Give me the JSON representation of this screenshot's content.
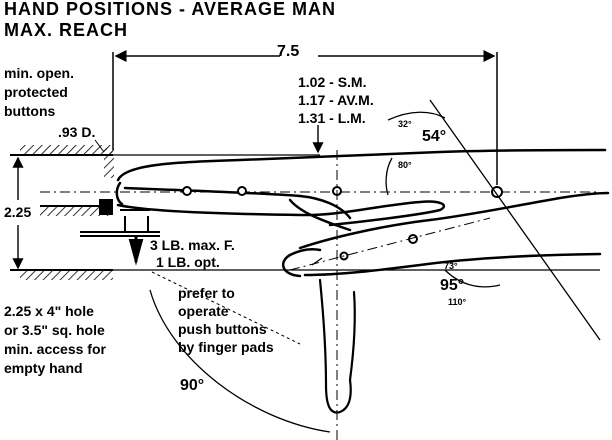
{
  "title": {
    "line1": "HAND POSITIONS - AVERAGE MAN",
    "line2": "MAX. REACH"
  },
  "labels": {
    "reach_dim": "7.5",
    "min_open_1": "min. open.",
    "min_open_2": "protected",
    "min_open_3": "buttons",
    "diameter": ".93 D.",
    "finger_sm": "1.02 - S.M.",
    "finger_av": "1.17 - AV.M.",
    "finger_lm": "1.31 - L.M.",
    "angle_32": "32°",
    "angle_54": "54°",
    "angle_80": "80°",
    "height_dim": "2.25",
    "force_max": "3 LB. max. F.",
    "force_opt": "1 LB. opt.",
    "angle_73": "73°",
    "angle_95": "95°",
    "angle_110": "110°",
    "prefer_1": "prefer to",
    "prefer_2": "operate",
    "prefer_3": "push buttons",
    "prefer_4": "by finger pads",
    "hole_1": "2.25 x 4\" hole",
    "hole_2": "or 3.5\" sq. hole",
    "hole_3": "min. access for",
    "hole_4": "empty hand",
    "angle_90": "90°"
  },
  "colors": {
    "ink": "#000000",
    "paper": "#ffffff"
  }
}
